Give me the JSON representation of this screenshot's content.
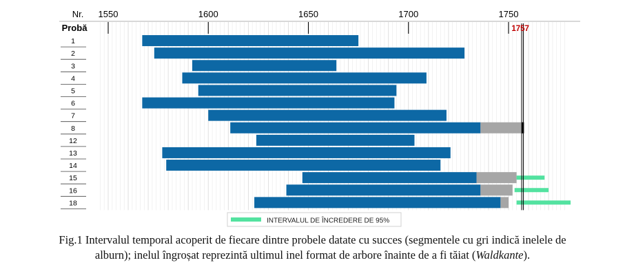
{
  "chart_data": {
    "type": "bar",
    "subtype": "floating-range",
    "header": {
      "row_label": "Nr.",
      "sample_label": "Probă"
    },
    "x_ticks": [
      1550,
      1600,
      1650,
      1700,
      1750
    ],
    "xlim": [
      1545,
      1778
    ],
    "grid": true,
    "marker": {
      "year": 1757,
      "label": "1757",
      "color": "#c00000"
    },
    "colors": {
      "heartwood": "#0d68a5",
      "sapwood": "#a6a6a6",
      "confidence": "#53e2a0",
      "last_ring": "#000000"
    },
    "samples": [
      {
        "label": "1",
        "start": 1567,
        "end": 1675
      },
      {
        "label": "2",
        "start": 1573,
        "end": 1728
      },
      {
        "label": "3",
        "start": 1592,
        "end": 1664
      },
      {
        "label": "4",
        "start": 1587,
        "end": 1709
      },
      {
        "label": "5",
        "start": 1595,
        "end": 1694
      },
      {
        "label": "6",
        "start": 1567,
        "end": 1693
      },
      {
        "label": "7",
        "start": 1600,
        "end": 1719
      },
      {
        "label": "8",
        "start": 1611,
        "end": 1736,
        "sapwood_end": 1757,
        "waldkante": true
      },
      {
        "label": "12",
        "start": 1624,
        "end": 1703
      },
      {
        "label": "13",
        "start": 1577,
        "end": 1721
      },
      {
        "label": "14",
        "start": 1579,
        "end": 1716
      },
      {
        "label": "15",
        "start": 1647,
        "end": 1734,
        "sapwood_end": 1754,
        "ci": [
          1754,
          1768
        ]
      },
      {
        "label": "16",
        "start": 1639,
        "end": 1736,
        "sapwood_end": 1752,
        "ci": [
          1753,
          1770
        ]
      },
      {
        "label": "18",
        "start": 1623,
        "end": 1746,
        "sapwood_end": 1750,
        "ci": [
          1754,
          1781
        ]
      }
    ],
    "legend": {
      "label": "INTERVALUL DE ÎNCREDERE DE 95%",
      "placement": "bottom-center"
    }
  },
  "caption": {
    "line1": "Fig.1 Intervalul temporal acoperit de fiecare dintre probele datate cu succes (segmentele cu gri indică inelele de",
    "line2_pre": "alburn); inelul îngroșat reprezintă ultimul inel format de arbore înainte de a fi tăiat (",
    "line2_italic": "Waldkante",
    "line2_post": ")."
  }
}
